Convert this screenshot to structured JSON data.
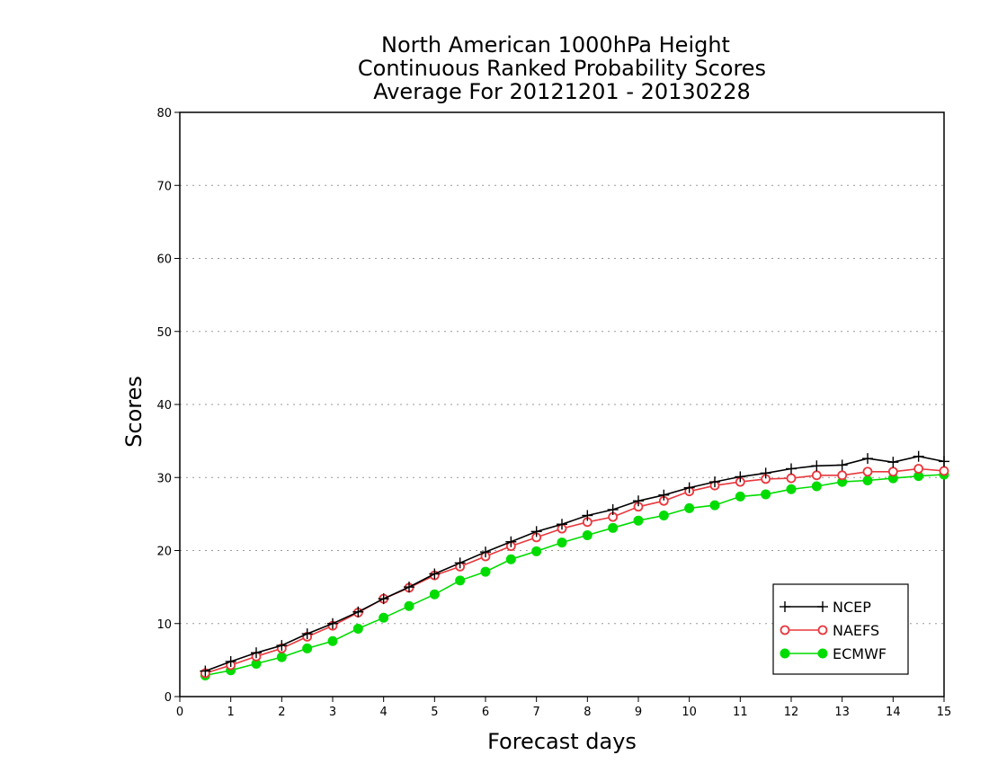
{
  "chart_data": {
    "type": "line",
    "title": [
      "North American 1000hPa Height",
      "Continuous Ranked Probability Scores",
      "Average For 20121201 - 20130228"
    ],
    "xlabel": "Forecast days",
    "ylabel": "Scores",
    "xlim": [
      0,
      15
    ],
    "ylim": [
      0,
      80
    ],
    "xticks": [
      0,
      1,
      2,
      3,
      4,
      5,
      6,
      7,
      8,
      9,
      10,
      11,
      12,
      13,
      14,
      15
    ],
    "yticks": [
      0,
      10,
      20,
      30,
      40,
      50,
      60,
      70,
      80
    ],
    "grid": "horizontal-dotted",
    "legend_position": "bottom-right",
    "x": [
      0.5,
      1,
      1.5,
      2,
      2.5,
      3,
      3.5,
      4,
      4.5,
      5,
      5.5,
      6,
      6.5,
      7,
      7.5,
      8,
      8.5,
      9,
      9.5,
      10,
      10.5,
      11,
      11.5,
      12,
      12.5,
      13,
      13.5,
      14,
      14.5,
      15
    ],
    "series": [
      {
        "name": "NCEP",
        "color": "#000000",
        "marker": "plus",
        "values": [
          3.5,
          4.8,
          6.0,
          7.0,
          8.6,
          10.0,
          11.6,
          13.4,
          15.0,
          16.8,
          18.3,
          19.8,
          21.2,
          22.6,
          23.6,
          24.8,
          25.6,
          26.8,
          27.6,
          28.6,
          29.4,
          30.1,
          30.6,
          31.2,
          31.6,
          31.7,
          32.6,
          32.1,
          32.9,
          32.2
        ]
      },
      {
        "name": "NAEFS",
        "color": "#e8383d",
        "marker": "open-circle",
        "values": [
          3.2,
          4.3,
          5.5,
          6.6,
          8.2,
          9.7,
          11.5,
          13.4,
          14.9,
          16.6,
          17.8,
          19.2,
          20.6,
          21.8,
          23.0,
          23.9,
          24.6,
          26.0,
          26.8,
          28.1,
          28.9,
          29.4,
          29.8,
          29.9,
          30.3,
          30.3,
          30.8,
          30.8,
          31.2,
          30.9
        ]
      },
      {
        "name": "ECMWF",
        "color": "#00dc00",
        "marker": "filled-circle",
        "values": [
          2.9,
          3.6,
          4.5,
          5.4,
          6.6,
          7.6,
          9.3,
          10.8,
          12.4,
          14.0,
          15.9,
          17.1,
          18.8,
          19.9,
          21.1,
          22.1,
          23.1,
          24.1,
          24.8,
          25.8,
          26.2,
          27.4,
          27.7,
          28.4,
          28.8,
          29.4,
          29.6,
          29.9,
          30.2,
          30.4
        ]
      }
    ]
  }
}
